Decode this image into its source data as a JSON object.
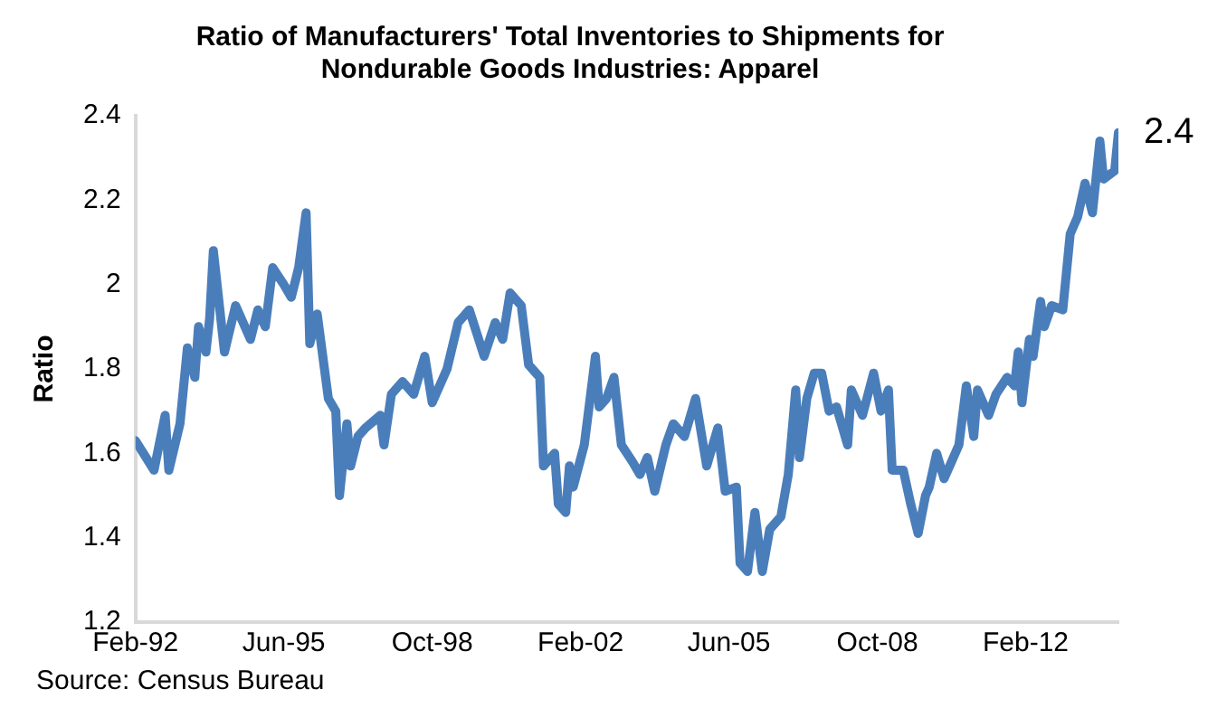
{
  "chart_data": {
    "type": "line",
    "title": "Ratio of Manufacturers' Total Inventories to Shipments for\nNondurable Goods Industries: Apparel",
    "ylabel": "Ratio",
    "annotations": [
      "Source: Census Bureau",
      {
        "text": "2.4",
        "x": "2014-03",
        "y": 2.36
      }
    ],
    "x": [
      "1992-02",
      "1992-07",
      "1992-10",
      "1992-11",
      "1993-02",
      "1993-04",
      "1993-06",
      "1993-07",
      "1993-09",
      "1993-10",
      "1993-11",
      "1994-02",
      "1994-05",
      "1994-09",
      "1994-11",
      "1995-01",
      "1995-03",
      "1995-06",
      "1995-08",
      "1995-10",
      "1995-12",
      "1996-01",
      "1996-03",
      "1996-06",
      "1996-08",
      "1996-09",
      "1996-11",
      "1996-12",
      "1997-02",
      "1997-04",
      "1997-08",
      "1997-09",
      "1997-11",
      "1998-02",
      "1998-05",
      "1998-08",
      "1998-10",
      "1999-02",
      "1999-05",
      "1999-08",
      "1999-12",
      "2000-03",
      "2000-05",
      "2000-07",
      "2000-10",
      "2000-12",
      "2001-03",
      "2001-04",
      "2001-07",
      "2001-08",
      "2001-10",
      "2001-11",
      "2001-12",
      "2002-03",
      "2002-06",
      "2002-07",
      "2002-09",
      "2002-11",
      "2003-01",
      "2003-04",
      "2003-06",
      "2003-08",
      "2003-10",
      "2004-01",
      "2004-03",
      "2004-06",
      "2004-09",
      "2004-12",
      "2005-03",
      "2005-05",
      "2005-08",
      "2005-09",
      "2005-11",
      "2006-01",
      "2006-03",
      "2006-05",
      "2006-08",
      "2006-10",
      "2006-12",
      "2007-01",
      "2007-03",
      "2007-05",
      "2007-07",
      "2007-09",
      "2007-11",
      "2008-02",
      "2008-03",
      "2008-06",
      "2008-09",
      "2008-11",
      "2009-01",
      "2009-02",
      "2009-05",
      "2009-07",
      "2009-09",
      "2009-11",
      "2009-12",
      "2010-02",
      "2010-04",
      "2010-06",
      "2010-08",
      "2010-10",
      "2010-12",
      "2011-01",
      "2011-04",
      "2011-06",
      "2011-09",
      "2011-11",
      "2011-12",
      "2012-01",
      "2012-03",
      "2012-04",
      "2012-06",
      "2012-07",
      "2012-09",
      "2012-12",
      "2013-02",
      "2013-04",
      "2013-06",
      "2013-08",
      "2013-10",
      "2013-11",
      "2014-02",
      "2014-03"
    ],
    "series": [
      {
        "color": "#4a7ebb",
        "values": [
          1.63,
          1.56,
          1.69,
          1.56,
          1.67,
          1.85,
          1.78,
          1.9,
          1.84,
          1.92,
          2.08,
          1.84,
          1.95,
          1.87,
          1.94,
          1.9,
          2.04,
          2.0,
          1.97,
          2.04,
          2.17,
          1.86,
          1.93,
          1.73,
          1.7,
          1.5,
          1.67,
          1.57,
          1.64,
          1.66,
          1.69,
          1.62,
          1.74,
          1.77,
          1.74,
          1.83,
          1.72,
          1.8,
          1.91,
          1.94,
          1.83,
          1.91,
          1.87,
          1.98,
          1.95,
          1.81,
          1.78,
          1.57,
          1.6,
          1.48,
          1.46,
          1.57,
          1.52,
          1.62,
          1.83,
          1.71,
          1.73,
          1.78,
          1.62,
          1.58,
          1.55,
          1.59,
          1.51,
          1.62,
          1.67,
          1.64,
          1.73,
          1.57,
          1.66,
          1.51,
          1.52,
          1.34,
          1.32,
          1.46,
          1.32,
          1.42,
          1.45,
          1.55,
          1.75,
          1.59,
          1.73,
          1.79,
          1.79,
          1.7,
          1.71,
          1.62,
          1.75,
          1.69,
          1.79,
          1.7,
          1.75,
          1.56,
          1.56,
          1.48,
          1.41,
          1.5,
          1.52,
          1.6,
          1.54,
          1.58,
          1.62,
          1.76,
          1.64,
          1.75,
          1.69,
          1.74,
          1.78,
          1.76,
          1.84,
          1.72,
          1.87,
          1.83,
          1.96,
          1.9,
          1.95,
          1.94,
          2.12,
          2.16,
          2.24,
          2.17,
          2.34,
          2.25,
          2.27,
          2.36
        ]
      }
    ],
    "xlim": [
      "1992-02",
      "2014-03"
    ],
    "xticks": [
      {
        "value": "1992-02",
        "label": "Feb-92"
      },
      {
        "value": "1995-06",
        "label": "Jun-95"
      },
      {
        "value": "1998-10",
        "label": "Oct-98"
      },
      {
        "value": "2002-02",
        "label": "Feb-02"
      },
      {
        "value": "2005-06",
        "label": "Jun-05"
      },
      {
        "value": "2008-10",
        "label": "Oct-08"
      },
      {
        "value": "2012-02",
        "label": "Feb-12"
      }
    ],
    "ylim": [
      1.2,
      2.4
    ],
    "yticks": [
      1.2,
      1.4,
      1.6,
      1.8,
      2.0,
      2.2,
      2.4
    ],
    "grid": false,
    "legend": false,
    "marker": "none",
    "line_style": "solid"
  }
}
